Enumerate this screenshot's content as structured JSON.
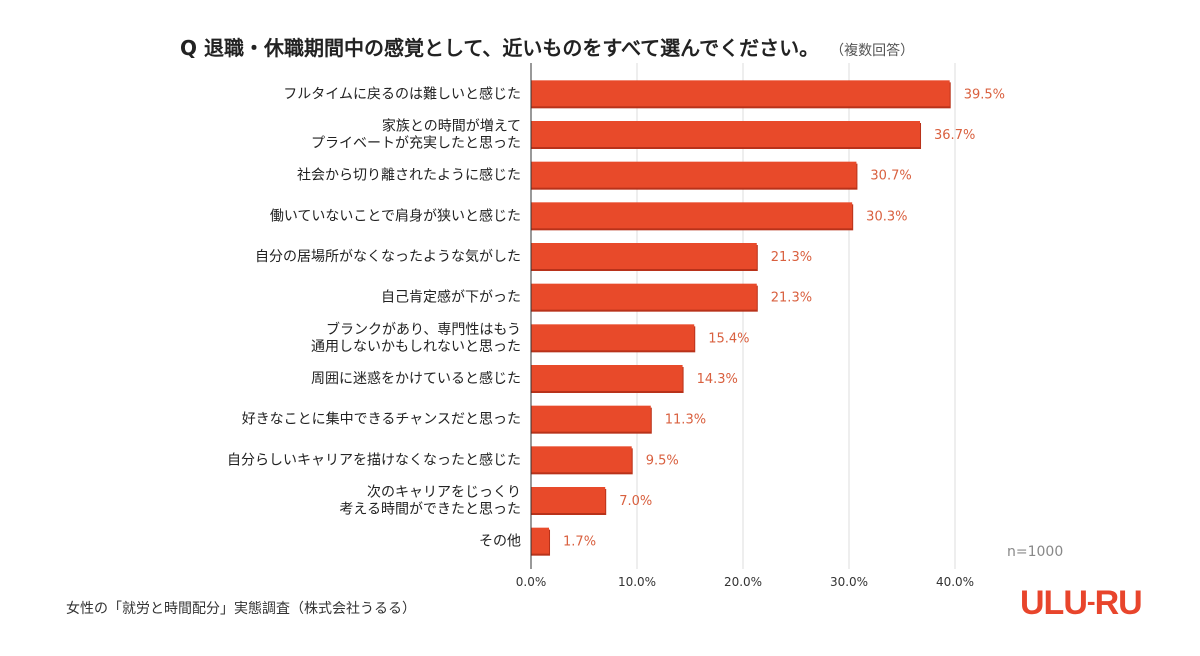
{
  "chart_data": {
    "type": "bar",
    "orientation": "horizontal",
    "title": "Q 退職・休職期間中の感覚として、近いものをすべて選んでください。",
    "subtitle": "（複数回答）",
    "categories": [
      [
        "フルタイムに戻るのは難しいと感じた"
      ],
      [
        "家族との時間が増えて",
        "プライベートが充実したと思った"
      ],
      [
        "社会から切り離されたように感じた"
      ],
      [
        "働いていないことで肩身が狭いと感じた"
      ],
      [
        "自分の居場所がなくなったような気がした"
      ],
      [
        "自己肯定感が下がった"
      ],
      [
        "ブランクがあり、専門性はもう",
        "通用しないかもしれないと思った"
      ],
      [
        "周囲に迷惑をかけていると感じた"
      ],
      [
        "好きなことに集中できるチャンスだと思った"
      ],
      [
        "自分らしいキャリアを描けなくなったと感じた"
      ],
      [
        "次のキャリアをじっくり",
        "考える時間ができたと思った"
      ],
      [
        "その他"
      ]
    ],
    "values": [
      39.5,
      36.7,
      30.7,
      30.3,
      21.3,
      21.3,
      15.4,
      14.3,
      11.3,
      9.5,
      7.0,
      1.7
    ],
    "value_labels": [
      "39.5%",
      "36.7%",
      "30.7%",
      "30.3%",
      "21.3%",
      "21.3%",
      "15.4%",
      "14.3%",
      "11.3%",
      "9.5%",
      "7.0%",
      "1.7%"
    ],
    "xlim": [
      0,
      40
    ],
    "xticks": [
      0,
      10,
      20,
      30,
      40
    ],
    "xtick_labels": [
      "0.0%",
      "10.0%",
      "20.0%",
      "30.0%",
      "40.0%"
    ],
    "grid": true,
    "bar_color": "#e84a2a",
    "label_color": "#d9603f",
    "annotation": "n=1000"
  },
  "source": "女性の「就労と時間配分」実態調査（株式会社うるる）",
  "logo": "ULU-RU"
}
